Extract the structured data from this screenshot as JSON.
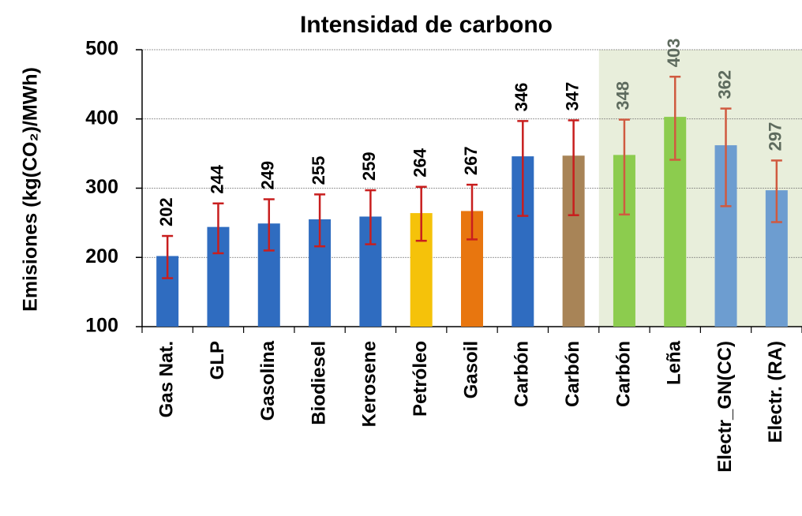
{
  "chart_data": {
    "type": "bar",
    "title": "Intensidad de carbono",
    "y_label": "Emisiones (kg(CO₂)/MWh)",
    "categories": [
      "Gas Nat.",
      "GLP",
      "Gasolina",
      "Biodiesel",
      "Kerosene",
      "Petróleo",
      "Gasoil",
      "Carbón",
      "Carbón",
      "Carbón",
      "Leña",
      "Electr_GN(CC)",
      "Electr. (RA)"
    ],
    "values": [
      202,
      244,
      249,
      255,
      259,
      264,
      267,
      346,
      347,
      348,
      403,
      362,
      297
    ],
    "error_low": [
      170,
      206,
      210,
      216,
      219,
      224,
      226,
      260,
      261,
      262,
      341,
      274,
      251
    ],
    "error_high": [
      231,
      278,
      284,
      291,
      297,
      302,
      305,
      397,
      398,
      399,
      461,
      415,
      340
    ],
    "colors": [
      "#2f6cc0",
      "#2f6cc0",
      "#2f6cc0",
      "#2f6cc0",
      "#2f6cc0",
      "#f5c20a",
      "#e8760f",
      "#2f6cc0",
      "#a88457",
      "#8ccc4e",
      "#8ccc4e",
      "#6d9dd0",
      "#6d9dd0"
    ],
    "ylim": [
      100,
      500
    ],
    "yticks": [
      100,
      200,
      300,
      400,
      500
    ],
    "grid": true
  }
}
